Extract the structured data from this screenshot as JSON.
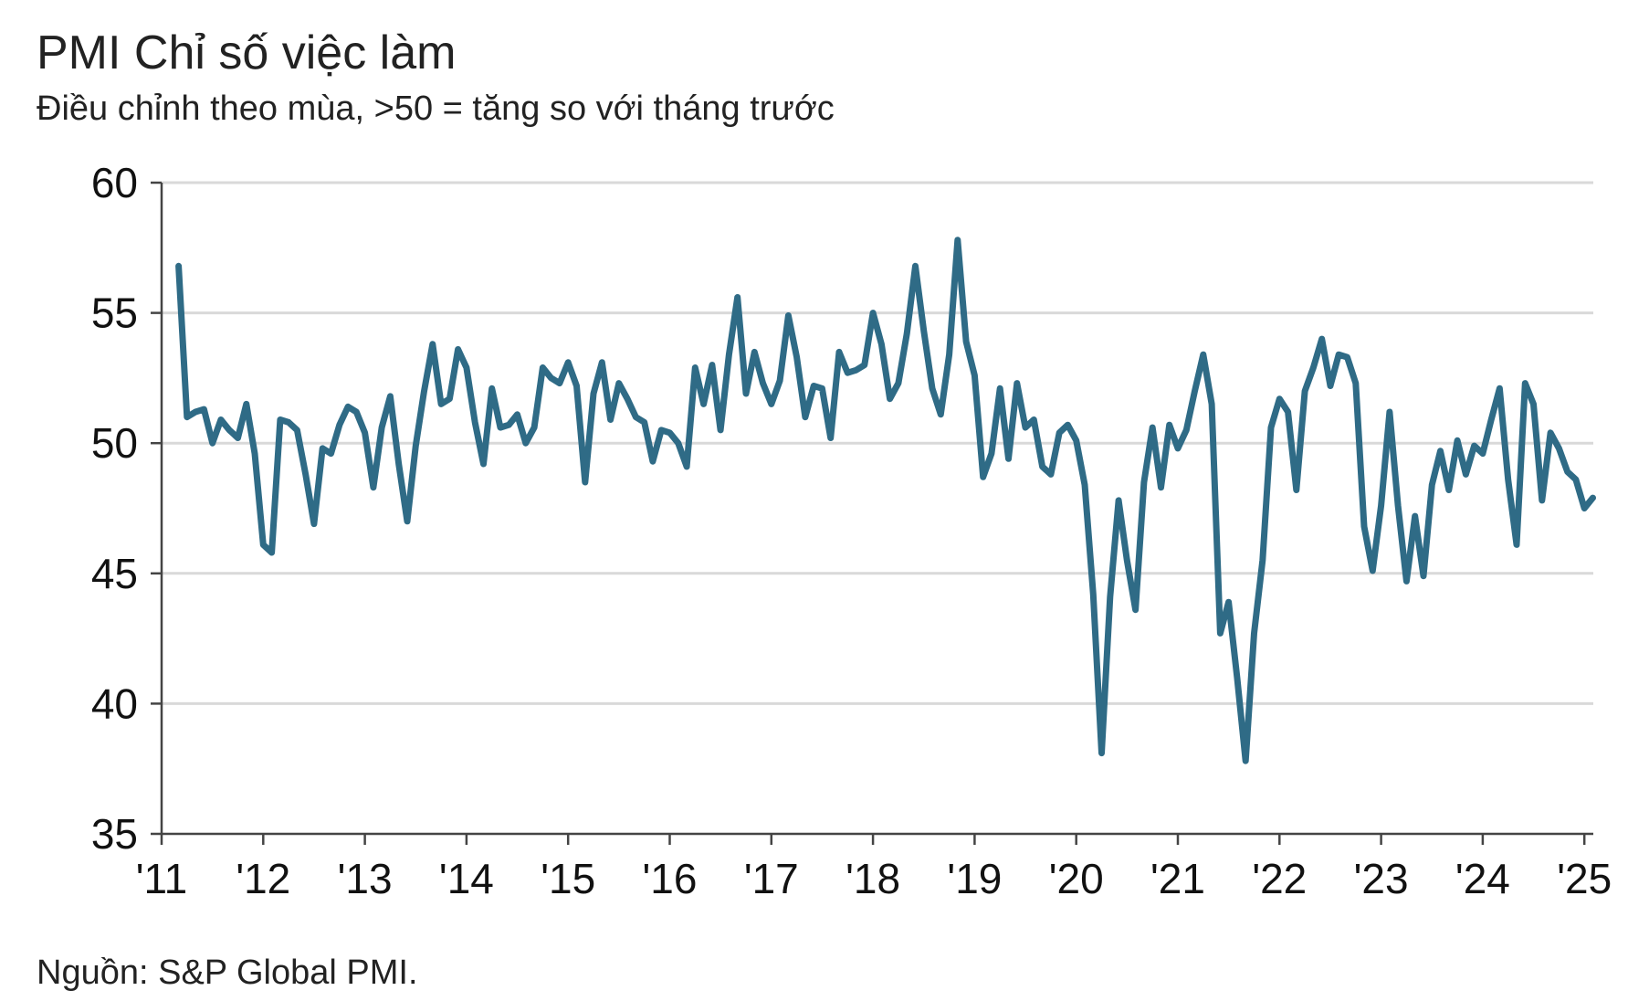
{
  "chart_data": {
    "type": "line",
    "title": "PMI Chỉ số việc làm",
    "subtitle": "Điều chỉnh theo mùa, >50 = tăng so với tháng trước",
    "source": "Nguồn: S&P Global PMI.",
    "xlabel": "",
    "ylabel": "",
    "ylim": [
      35,
      60
    ],
    "yticks": [
      35,
      40,
      45,
      50,
      55,
      60
    ],
    "xtick_labels": [
      "'11",
      "'12",
      "'13",
      "'14",
      "'15",
      "'16",
      "'17",
      "'18",
      "'19",
      "'20",
      "'21",
      "'22",
      "'23",
      "'24",
      "'25"
    ],
    "x_start": "2011-03",
    "x_end": "2025-02",
    "grid": true,
    "line_color": "#2f6b86",
    "series": [
      {
        "name": "PMI Chỉ số việc làm",
        "values": [
          56.8,
          51.0,
          51.2,
          51.3,
          50.0,
          50.9,
          50.5,
          50.2,
          51.5,
          49.6,
          46.1,
          45.8,
          50.9,
          50.8,
          50.5,
          48.8,
          46.9,
          49.8,
          49.6,
          50.7,
          51.4,
          51.2,
          50.4,
          48.3,
          50.6,
          51.8,
          49.2,
          47.0,
          49.9,
          52.0,
          53.8,
          51.5,
          51.7,
          53.6,
          52.9,
          50.8,
          49.2,
          52.1,
          50.6,
          50.7,
          51.1,
          50.0,
          50.6,
          52.9,
          52.5,
          52.3,
          53.1,
          52.2,
          48.5,
          51.9,
          53.1,
          50.9,
          52.3,
          51.7,
          51.0,
          50.8,
          49.3,
          50.5,
          50.4,
          50.0,
          49.1,
          52.9,
          51.5,
          53.0,
          50.5,
          53.4,
          55.6,
          51.9,
          53.5,
          52.3,
          51.5,
          52.4,
          54.9,
          53.3,
          51.0,
          52.2,
          52.1,
          50.2,
          53.5,
          52.7,
          52.8,
          53.0,
          55.0,
          53.8,
          51.7,
          52.3,
          54.2,
          56.8,
          54.3,
          52.1,
          51.1,
          53.4,
          57.8,
          53.9,
          52.6,
          48.7,
          49.6,
          52.1,
          49.4,
          52.3,
          50.6,
          50.9,
          49.1,
          48.8,
          50.4,
          50.7,
          50.1,
          48.4,
          44.2,
          38.1,
          44.1,
          47.8,
          45.5,
          43.6,
          48.5,
          50.6,
          48.3,
          50.7,
          49.8,
          50.5,
          52.0,
          53.4,
          51.5,
          42.7,
          43.9,
          41.0,
          37.8,
          42.7,
          45.5,
          50.6,
          51.7,
          51.2,
          48.2,
          52.0,
          52.9,
          54.0,
          52.2,
          53.4,
          53.3,
          52.3,
          46.8,
          45.1,
          47.6,
          51.2,
          47.6,
          44.7,
          47.2,
          44.9,
          48.4,
          49.7,
          48.2,
          50.1,
          48.8,
          49.9,
          49.6,
          50.9,
          52.1,
          48.6,
          46.1,
          52.3,
          51.5,
          47.8,
          50.4,
          49.8,
          48.9,
          48.6,
          47.5,
          47.9
        ]
      }
    ]
  }
}
